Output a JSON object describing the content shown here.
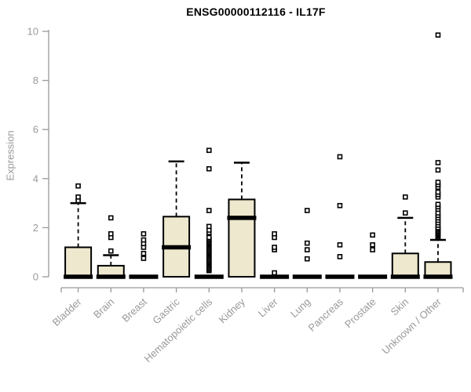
{
  "page": {
    "title": "ENSG00000112116 - IL17F"
  },
  "chart_data": {
    "type": "boxplot",
    "title": "ENSG00000112116 - IL17F",
    "xlabel": "",
    "ylabel": "Expression",
    "ylim": [
      0,
      10
    ],
    "yticks": [
      0,
      2,
      4,
      6,
      8,
      10
    ],
    "grid": false,
    "legend": "none",
    "categories": [
      "Bladder",
      "Brain",
      "Breast",
      "Gastric",
      "Hematopoietic cells",
      "Kidney",
      "Liver",
      "Lung",
      "Pancreas",
      "Prostate",
      "Skin",
      "Unknown / Other"
    ],
    "boxes": [
      {
        "category": "Bladder",
        "q1": 0,
        "median": 0,
        "q3": 1.2,
        "whisker_low": 0,
        "whisker_high": 3.0,
        "outliers": [
          3.1,
          3.25,
          3.7
        ]
      },
      {
        "category": "Brain",
        "q1": 0,
        "median": 0,
        "q3": 0.45,
        "whisker_low": 0,
        "whisker_high": 0.88,
        "outliers": [
          1.05,
          1.6,
          1.75,
          2.4
        ]
      },
      {
        "category": "Breast",
        "q1": 0,
        "median": 0,
        "q3": 0,
        "whisker_low": 0,
        "whisker_high": 0,
        "outliers": [
          0.75,
          0.95,
          1.2,
          1.35,
          1.5,
          1.75
        ]
      },
      {
        "category": "Gastric",
        "q1": 0,
        "median": 1.2,
        "q3": 2.45,
        "whisker_low": 0,
        "whisker_high": 4.7,
        "outliers": []
      },
      {
        "category": "Hematopoietic cells",
        "q1": 0,
        "median": 0,
        "q3": 0,
        "whisker_low": 0,
        "whisker_high": 0,
        "outliers": [
          0.25,
          0.3,
          0.35,
          0.4,
          0.45,
          0.5,
          0.55,
          0.6,
          0.65,
          0.7,
          0.75,
          0.8,
          0.85,
          0.9,
          0.95,
          1.0,
          1.05,
          1.1,
          1.15,
          1.2,
          1.25,
          1.3,
          1.35,
          1.4,
          1.45,
          1.5,
          1.55,
          1.6,
          1.8,
          1.9,
          2.05,
          2.7,
          4.4,
          5.15
        ]
      },
      {
        "category": "Kidney",
        "q1": 0,
        "median": 2.4,
        "q3": 3.15,
        "whisker_low": 0,
        "whisker_high": 4.65,
        "outliers": []
      },
      {
        "category": "Liver",
        "q1": 0,
        "median": 0,
        "q3": 0,
        "whisker_low": 0,
        "whisker_high": 0,
        "outliers": [
          0.16,
          1.1,
          1.2,
          1.6,
          1.75
        ]
      },
      {
        "category": "Lung",
        "q1": 0,
        "median": 0,
        "q3": 0,
        "whisker_low": 0,
        "whisker_high": 0,
        "outliers": [
          0.73,
          1.1,
          1.37,
          2.7
        ]
      },
      {
        "category": "Pancreas",
        "q1": 0,
        "median": 0,
        "q3": 0,
        "whisker_low": 0,
        "whisker_high": 0,
        "outliers": [
          0.82,
          1.3,
          2.9,
          4.89
        ]
      },
      {
        "category": "Prostate",
        "q1": 0,
        "median": 0,
        "q3": 0,
        "whisker_low": 0,
        "whisker_high": 0,
        "outliers": [
          1.1,
          1.3,
          1.7
        ]
      },
      {
        "category": "Skin",
        "q1": 0,
        "median": 0,
        "q3": 0.95,
        "whisker_low": 0,
        "whisker_high": 2.4,
        "outliers": [
          2.6,
          3.25
        ]
      },
      {
        "category": "Unknown / Other",
        "q1": 0,
        "median": 0,
        "q3": 0.6,
        "whisker_low": 0,
        "whisker_high": 1.5,
        "outliers": [
          1.6,
          1.65,
          1.7,
          1.75,
          1.8,
          1.85,
          1.9,
          1.95,
          2.0,
          2.1,
          2.2,
          2.3,
          2.4,
          2.5,
          2.6,
          2.75,
          2.85,
          2.95,
          3.25,
          3.35,
          3.45,
          3.65,
          3.75,
          3.85,
          4.35,
          4.65,
          9.85
        ]
      }
    ],
    "colors": {
      "box_fill": "#EDE8CE",
      "box_border": "#000000",
      "median": "#000000",
      "whisker": "#000000",
      "outlier_stroke": "#000000",
      "outlier_fill": "#FFFFFF",
      "axis": "#999999",
      "tick_label": "#9A9A9A",
      "title": "#000000",
      "background": "#FFFFFF"
    }
  }
}
